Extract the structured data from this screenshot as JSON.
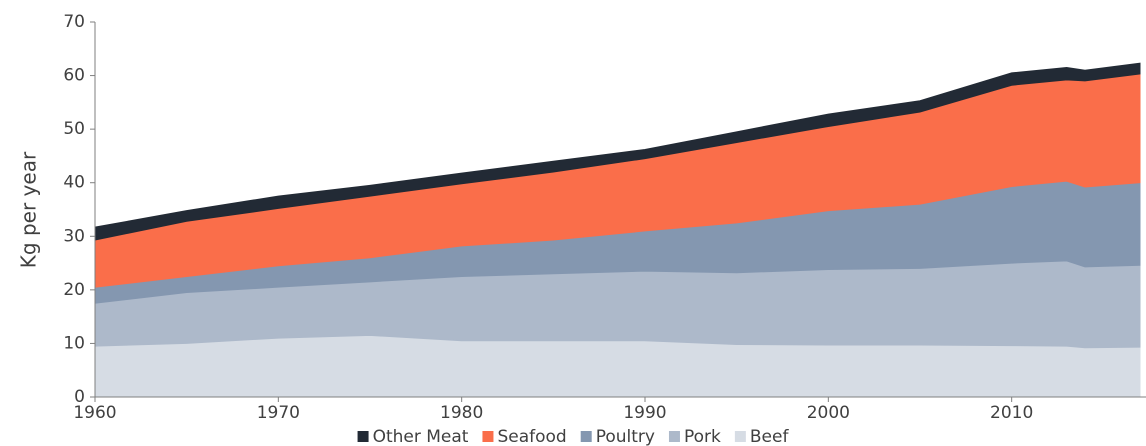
{
  "chart_data": {
    "type": "area",
    "stacked": true,
    "y_label": "Kg per year",
    "x": [
      1960,
      1965,
      1970,
      1975,
      1980,
      1985,
      1990,
      1995,
      2000,
      2005,
      2010,
      2013,
      2014,
      2017
    ],
    "series": [
      {
        "name": "Beef",
        "color": "#d6dce4",
        "values": [
          9.5,
          10,
          11,
          11.5,
          10.5,
          10.5,
          10.5,
          9.8,
          9.7,
          9.7,
          9.6,
          9.5,
          9.2,
          9.3
        ]
      },
      {
        "name": "Pork",
        "color": "#adb9ca",
        "values": [
          8.0,
          9.5,
          9.5,
          10,
          12,
          12.5,
          13,
          13.4,
          14.1,
          14.3,
          15.4,
          15.9,
          15.1,
          15.3
        ]
      },
      {
        "name": "Poultry",
        "color": "#8497b0",
        "values": [
          3.0,
          3.0,
          4.0,
          4.5,
          5.7,
          6.3,
          7.5,
          9.3,
          11,
          12,
          14.3,
          14.9,
          14.9,
          15.4
        ]
      },
      {
        "name": "Seafood",
        "color": "#fa6e4a",
        "values": [
          8.8,
          10.3,
          10.7,
          11.5,
          11.6,
          12.7,
          13.5,
          15,
          15.7,
          17.2,
          18.9,
          18.9,
          19.8,
          20.3
        ]
      },
      {
        "name": "Other Meat",
        "color": "#222a35",
        "values": [
          2.4,
          2.0,
          2.3,
          2.0,
          2.0,
          2.0,
          1.7,
          2.0,
          2.3,
          2.1,
          2.3,
          2.3,
          2.0,
          2.0
        ]
      }
    ],
    "xlim": [
      1960,
      2017
    ],
    "xticks": [
      1960,
      1970,
      1980,
      1990,
      2000,
      2010
    ],
    "ylim": [
      0,
      70
    ],
    "yticks": [
      0,
      10,
      20,
      30,
      40,
      50,
      60,
      70
    ],
    "grid": false,
    "legend": "bottom"
  }
}
